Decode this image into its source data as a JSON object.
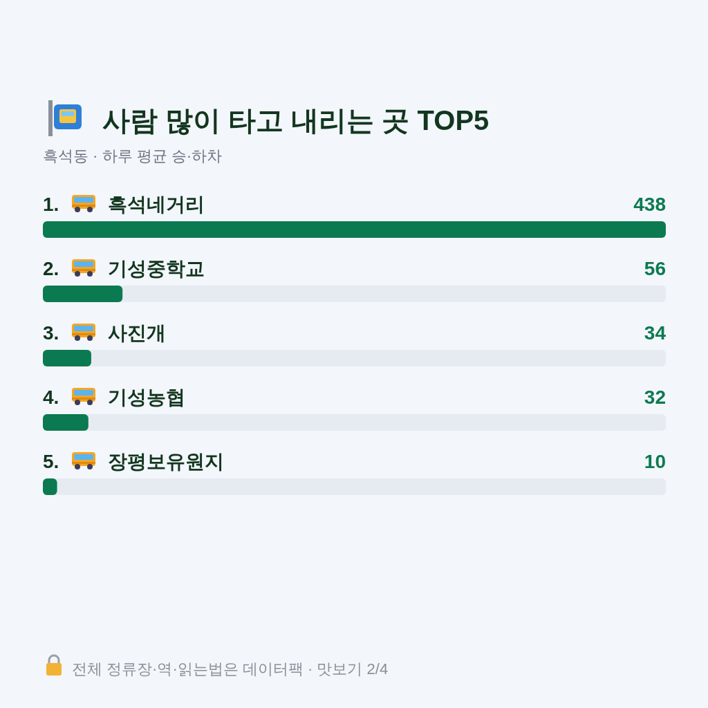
{
  "chart_data": {
    "type": "bar",
    "orientation": "horizontal",
    "title": "사람 많이 타고 내리는 곳 TOP5",
    "subtitle": "흑석동 · 하루 평균 승·하차",
    "categories": [
      "1. 흑석네거리",
      "2. 기성중학교",
      "3. 사진개",
      "4. 기성농협",
      "5. 장평보유원지"
    ],
    "values": [
      438,
      56,
      34,
      32,
      10
    ],
    "color": "#0b7a50",
    "xlim": [
      0,
      438
    ],
    "data_labels": true,
    "tick_labels": "y",
    "annotations": [
      "전체 정류장·역·읽는법은 데이터팩 · 맛보기 2/4"
    ]
  }
}
